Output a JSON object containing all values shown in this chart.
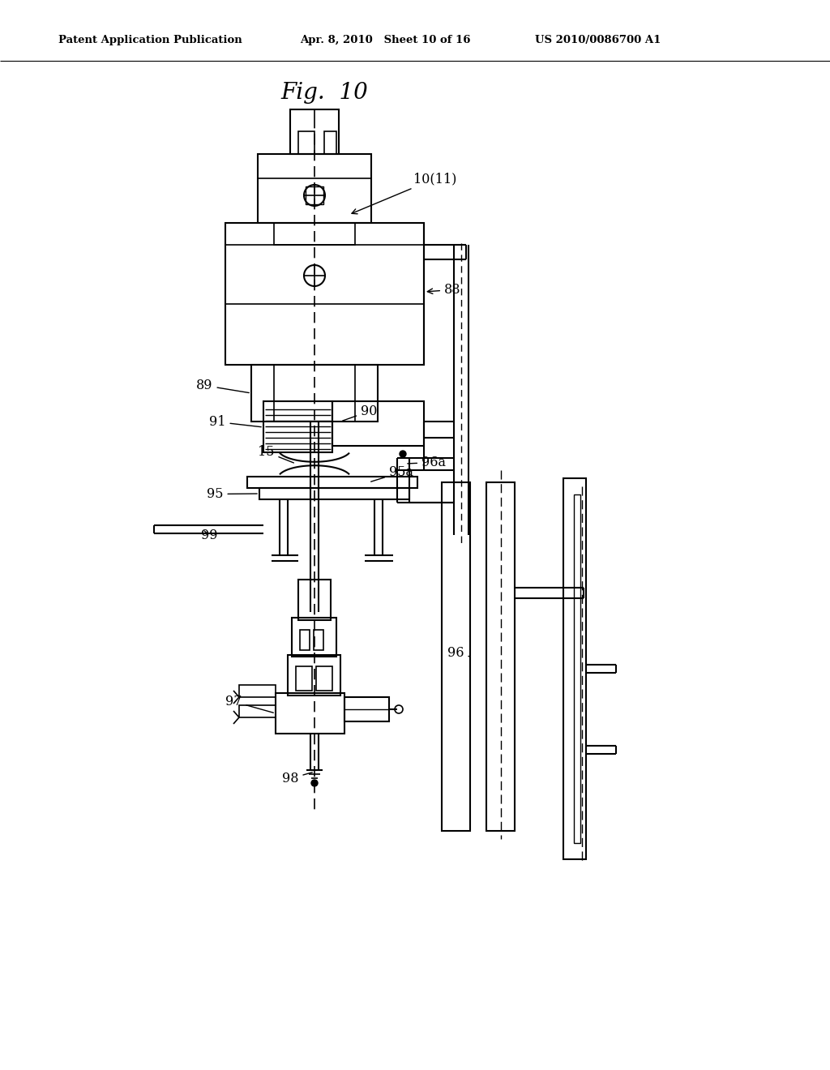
{
  "bg_color": "#ffffff",
  "line_color": "#000000",
  "fig_title": "Fig.  10",
  "header_left": "Patent Application Publication",
  "header_mid": "Apr. 8, 2010   Sheet 10 of 16",
  "header_right": "US 2010/0086700 A1"
}
